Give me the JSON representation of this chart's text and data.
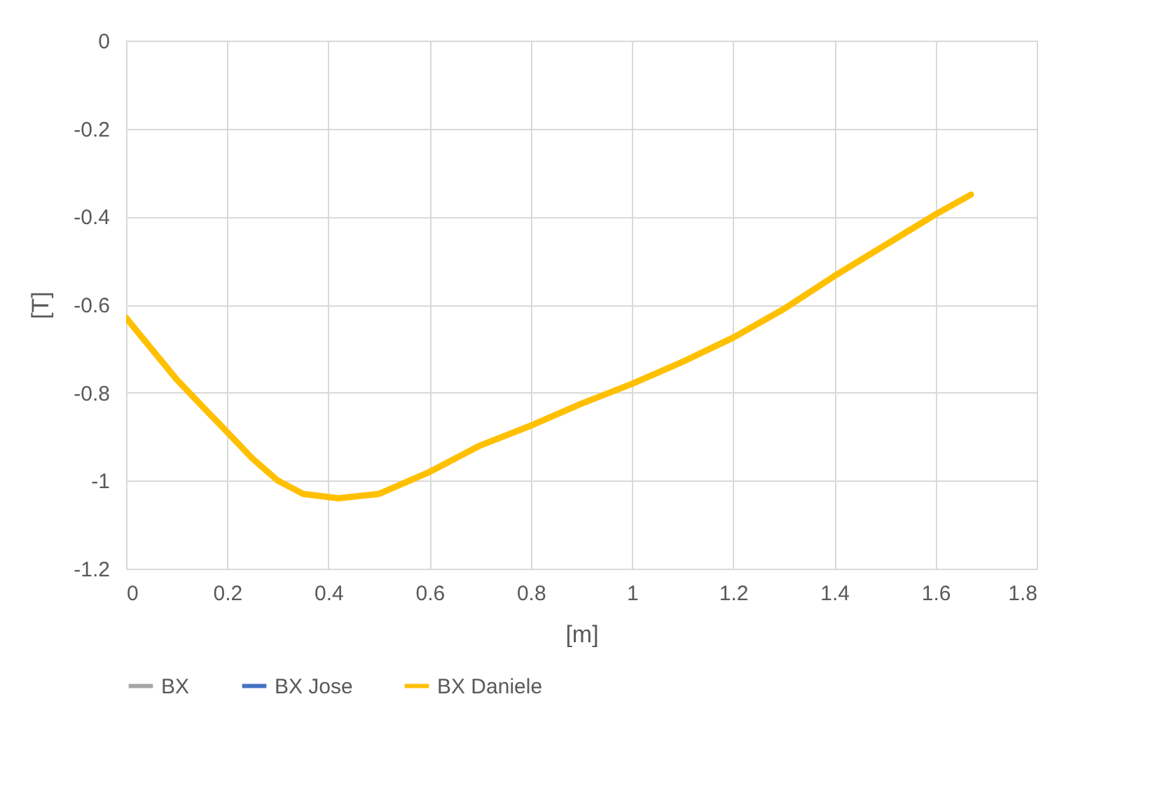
{
  "chart_data": {
    "type": "line",
    "xlabel": "[m]",
    "ylabel": "[T]",
    "xlim": [
      0,
      1.8
    ],
    "xticks": [
      0,
      0.2,
      0.4,
      0.6,
      0.8,
      1,
      1.2,
      1.4,
      1.6,
      1.8
    ],
    "ylim": [
      -1.2,
      0
    ],
    "yticks": [
      -1.2,
      -1,
      -0.8,
      -0.6,
      -0.4,
      -0.2,
      0
    ],
    "grid": true,
    "legend": "bottom",
    "marker": "none",
    "line_style": "solid",
    "series": [
      {
        "name": "BX",
        "color": "#a5a5a5"
      },
      {
        "name": "BX Jose",
        "color": "#4472c4"
      },
      {
        "name": "BX Daniele",
        "color": "#ffc000",
        "x": [
          0,
          0.05,
          0.1,
          0.15,
          0.2,
          0.25,
          0.3,
          0.35,
          0.42,
          0.5,
          0.6,
          0.7,
          0.8,
          0.9,
          1.0,
          1.1,
          1.2,
          1.3,
          1.4,
          1.5,
          1.6,
          1.67
        ],
        "values": [
          -0.63,
          -0.7,
          -0.77,
          -0.83,
          -0.89,
          -0.95,
          -1.0,
          -1.03,
          -1.04,
          -1.03,
          -0.98,
          -0.92,
          -0.875,
          -0.825,
          -0.78,
          -0.73,
          -0.675,
          -0.61,
          -0.535,
          -0.465,
          -0.395,
          -0.35
        ]
      }
    ]
  }
}
